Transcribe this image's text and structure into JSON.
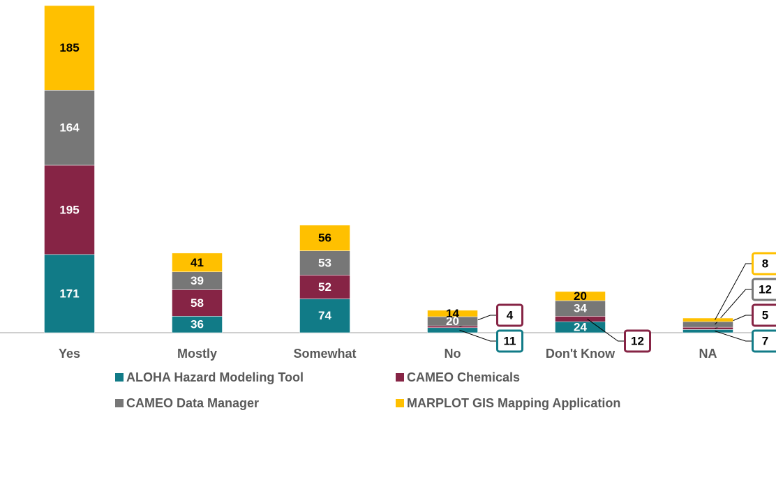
{
  "chart_data": {
    "type": "bar",
    "stacked": true,
    "categories": [
      "Yes",
      "Mostly",
      "Somewhat",
      "No",
      "Don't Know",
      "NA"
    ],
    "series": [
      {
        "name": "ALOHA Hazard Modeling Tool",
        "color": "#117b87",
        "values": [
          171,
          36,
          74,
          11,
          24,
          7
        ]
      },
      {
        "name": "CAMEO Chemicals",
        "color": "#862445",
        "values": [
          195,
          58,
          52,
          4,
          12,
          5
        ]
      },
      {
        "name": "CAMEO Data Manager",
        "color": "#777777",
        "values": [
          164,
          39,
          53,
          20,
          34,
          12
        ]
      },
      {
        "name": "MARPLOT GIS Mapping Application",
        "color": "#ffc000",
        "values": [
          185,
          41,
          56,
          14,
          20,
          8
        ]
      }
    ]
  }
}
